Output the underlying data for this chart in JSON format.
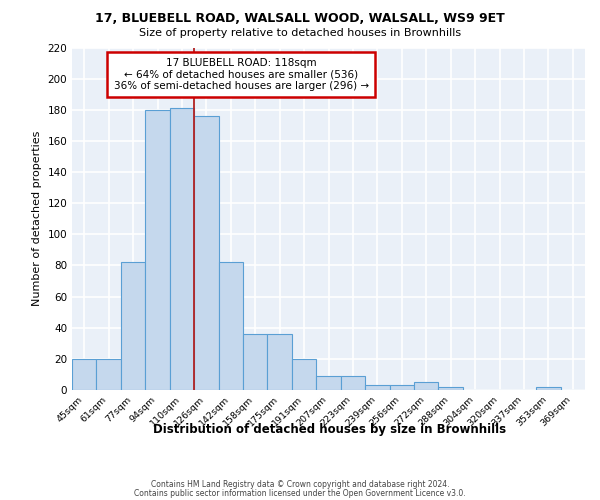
{
  "title1": "17, BLUEBELL ROAD, WALSALL WOOD, WALSALL, WS9 9ET",
  "title2": "Size of property relative to detached houses in Brownhills",
  "xlabel": "Distribution of detached houses by size in Brownhills",
  "ylabel": "Number of detached properties",
  "categories": [
    "45sqm",
    "61sqm",
    "77sqm",
    "94sqm",
    "110sqm",
    "126sqm",
    "142sqm",
    "158sqm",
    "175sqm",
    "191sqm",
    "207sqm",
    "223sqm",
    "239sqm",
    "256sqm",
    "272sqm",
    "288sqm",
    "304sqm",
    "320sqm",
    "337sqm",
    "353sqm",
    "369sqm"
  ],
  "values": [
    20,
    20,
    82,
    180,
    181,
    176,
    82,
    36,
    36,
    20,
    9,
    9,
    3,
    3,
    5,
    2,
    0,
    0,
    0,
    2,
    0
  ],
  "bar_color": "#c5d8ed",
  "bar_edge_color": "#5a9fd4",
  "vline_x": 4.5,
  "vline_color": "#b22222",
  "annotation_line1": "17 BLUEBELL ROAD: 118sqm",
  "annotation_line2": "← 64% of detached houses are smaller (536)",
  "annotation_line3": "36% of semi-detached houses are larger (296) →",
  "annotation_border_color": "#cc0000",
  "ylim": [
    0,
    220
  ],
  "yticks": [
    0,
    20,
    40,
    60,
    80,
    100,
    120,
    140,
    160,
    180,
    200,
    220
  ],
  "bg_color": "#eaf0f8",
  "grid_color": "#ffffff",
  "footer1": "Contains HM Land Registry data © Crown copyright and database right 2024.",
  "footer2": "Contains public sector information licensed under the Open Government Licence v3.0."
}
